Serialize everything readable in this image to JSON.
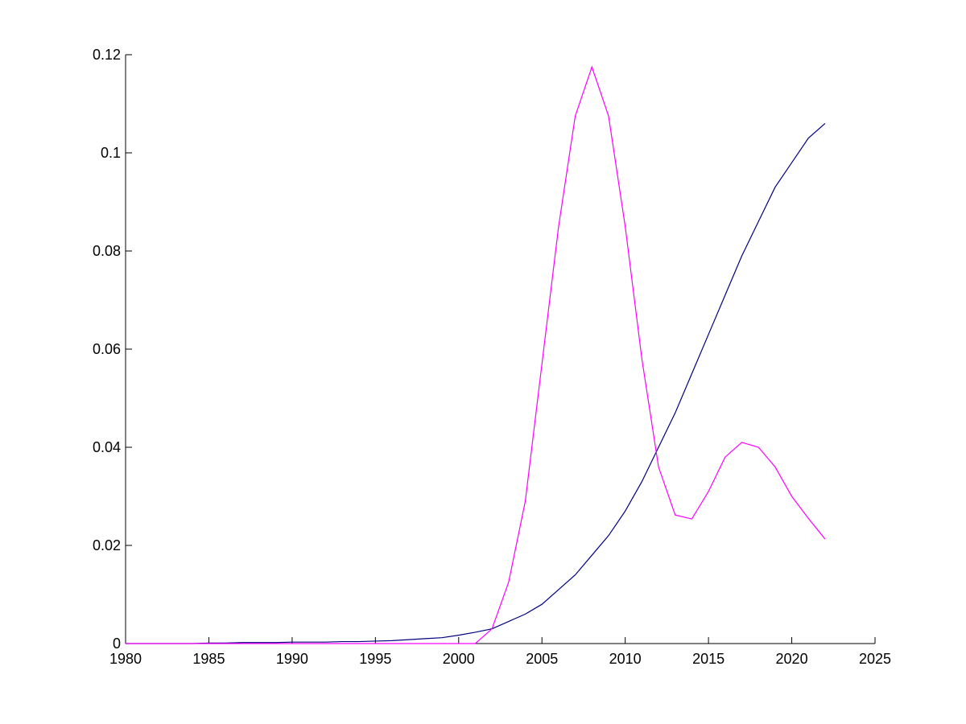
{
  "chart_data": {
    "type": "line",
    "x": [
      1980,
      1981,
      1982,
      1983,
      1984,
      1985,
      1986,
      1987,
      1988,
      1989,
      1990,
      1991,
      1992,
      1993,
      1994,
      1995,
      1996,
      1997,
      1998,
      1999,
      2000,
      2001,
      2002,
      2003,
      2004,
      2005,
      2006,
      2007,
      2008,
      2009,
      2010,
      2011,
      2012,
      2013,
      2014,
      2015,
      2016,
      2017,
      2018,
      2019,
      2020,
      2021,
      2022
    ],
    "series": [
      {
        "color": "#000080",
        "values": [
          0,
          0,
          0,
          0,
          0,
          0.0001,
          0.0001,
          0.0002,
          0.0002,
          0.0002,
          0.0003,
          0.0003,
          0.0003,
          0.0004,
          0.0004,
          0.0005,
          0.0006,
          0.0008,
          0.001,
          0.0012,
          0.0017,
          0.0023,
          0.003,
          0.0045,
          0.006,
          0.008,
          0.011,
          0.014,
          0.018,
          0.022,
          0.027,
          0.033,
          0.04,
          0.047,
          0.055,
          0.063,
          0.071,
          0.079,
          0.086,
          0.093,
          0.098,
          0.103,
          0.106
        ]
      },
      {
        "color": "#ff00ff",
        "values": [
          0,
          0,
          0,
          0,
          0,
          0,
          0,
          0,
          0,
          0,
          0,
          0,
          0,
          0,
          0,
          0,
          0,
          0,
          0,
          0,
          0,
          0,
          0.003,
          0.0125,
          0.029,
          0.057,
          0.085,
          0.1075,
          0.1175,
          0.1075,
          0.085,
          0.058,
          0.036,
          0.0262,
          0.0254,
          0.031,
          0.038,
          0.041,
          0.04,
          0.036,
          0.03,
          0.0255,
          0.0213
        ]
      }
    ],
    "xlim": [
      1980,
      2025
    ],
    "xticks": [
      1980,
      1985,
      1990,
      1995,
      2000,
      2005,
      2010,
      2015,
      2020,
      2025
    ],
    "ylim": [
      0,
      0.12
    ],
    "yticks": [
      0,
      0.02,
      0.04,
      0.06,
      0.08,
      0.1,
      0.12
    ]
  }
}
